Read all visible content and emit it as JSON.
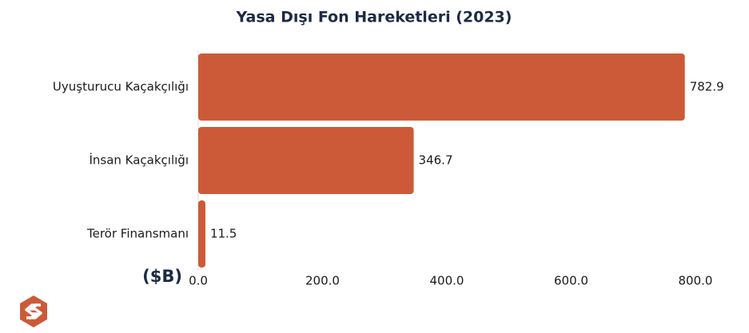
{
  "chart_data": {
    "type": "bar",
    "orientation": "horizontal",
    "title": "Yasa Dışı Fon Hareketleri (2023)",
    "x_label": "($B)",
    "categories": [
      "Uyuşturucu Kaçakçılığı",
      "İnsan Kaçakçılığı",
      "Terör Finansmanı"
    ],
    "values": [
      782.9,
      346.7,
      11.5
    ],
    "color": "#cc5a38",
    "xlim": [
      0,
      800
    ],
    "xticks": [
      {
        "value": 0,
        "label": "0.0"
      },
      {
        "value": 200,
        "label": "200.0"
      },
      {
        "value": 400,
        "label": "400.0"
      },
      {
        "value": 600,
        "label": "600.0"
      },
      {
        "value": 800,
        "label": "800.0"
      }
    ]
  }
}
